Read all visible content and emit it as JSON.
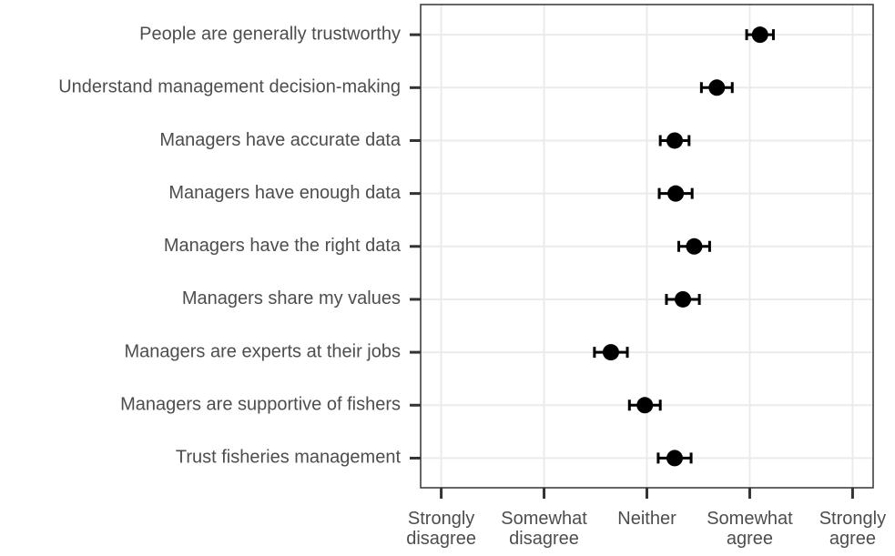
{
  "chart_data": {
    "type": "dotplot",
    "categories": [
      "People are generally trustworthy",
      "Understand management decision-making",
      "Managers have accurate data",
      "Managers have enough data",
      "Managers have the right data",
      "Managers share my values",
      "Managers are experts at their jobs",
      "Managers are supportive of fishers",
      "Trust fisheries management"
    ],
    "values": [
      4.1,
      3.68,
      3.27,
      3.28,
      3.46,
      3.35,
      2.65,
      2.98,
      3.27
    ],
    "errors": [
      0.13,
      0.15,
      0.14,
      0.16,
      0.15,
      0.16,
      0.16,
      0.15,
      0.16
    ],
    "color": "#000000",
    "xlim": [
      0.8,
      5.2
    ],
    "xticks": [
      {
        "value": 1,
        "label": "Strongly disagree"
      },
      {
        "value": 2,
        "label": "Somewhat disagree"
      },
      {
        "value": 3,
        "label": "Neither"
      },
      {
        "value": 4,
        "label": "Somewhat agree"
      },
      {
        "value": 5,
        "label": "Strongly agree"
      }
    ],
    "grid": true
  }
}
